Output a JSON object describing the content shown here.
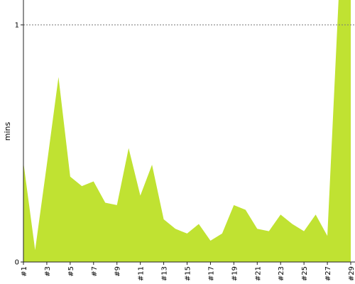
{
  "chart_data": {
    "type": "area",
    "x": [
      "#1",
      "#2",
      "#3",
      "#4",
      "#5",
      "#6",
      "#7",
      "#8",
      "#9",
      "#10",
      "#11",
      "#12",
      "#13",
      "#14",
      "#15",
      "#16",
      "#17",
      "#18",
      "#19",
      "#20",
      "#21",
      "#22",
      "#23",
      "#24",
      "#25",
      "#26",
      "#27",
      "#28",
      "#29"
    ],
    "x_tick_labels": [
      "#1",
      "#3",
      "#5",
      "#7",
      "#9",
      "#11",
      "#13",
      "#15",
      "#17",
      "#19",
      "#21",
      "#23",
      "#25",
      "#27",
      "#29"
    ],
    "series": [
      {
        "values": [
          0.42,
          0.05,
          0.41,
          0.78,
          0.36,
          0.32,
          0.34,
          0.25,
          0.24,
          0.48,
          0.28,
          0.41,
          0.18,
          0.14,
          0.12,
          0.16,
          0.09,
          0.12,
          0.24,
          0.22,
          0.14,
          0.13,
          0.2,
          0.16,
          0.13,
          0.2,
          0.11,
          1.15,
          1.15
        ]
      }
    ],
    "ylabel": "mins",
    "y_tick_labels": [
      "0",
      "1"
    ],
    "ylim": [
      0,
      1.1
    ],
    "reference_line": 1,
    "grid": false,
    "fill_color": "#c0e232",
    "axis_color": "#222222",
    "reference_line_color": "#777777"
  }
}
